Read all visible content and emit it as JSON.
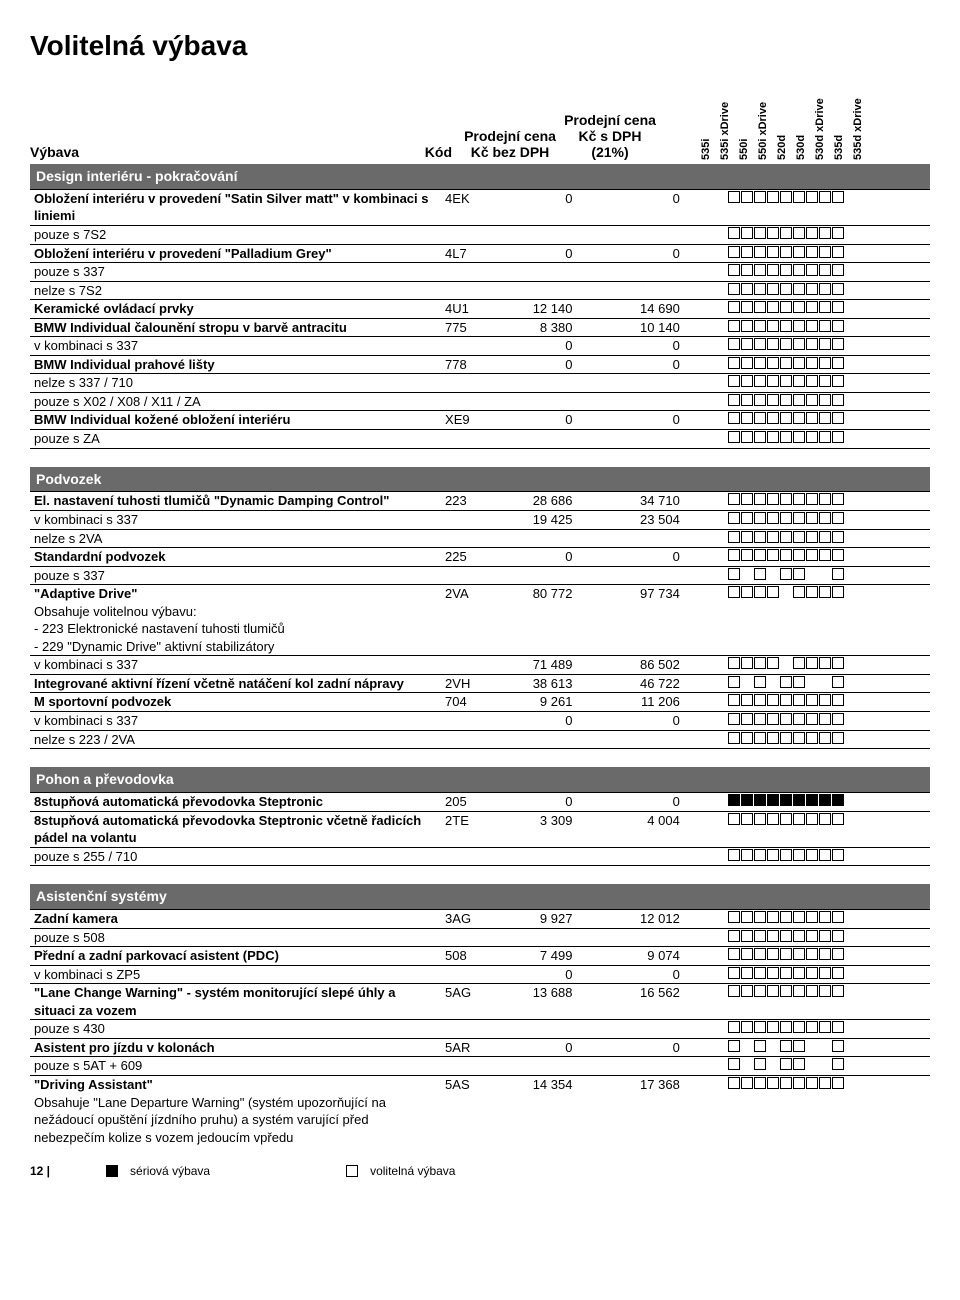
{
  "title": "Volitelná výbava",
  "header": {
    "vybava": "Výbava",
    "kod": "Kód",
    "price1": "Prodejní cena Kč bez DPH",
    "price2": "Prodejní cena Kč s DPH (21%)"
  },
  "models": [
    "535i",
    "535i xDrive",
    "550i",
    "550i xDrive",
    "520d",
    "530d",
    "530d xDrive",
    "535d",
    "535d xDrive"
  ],
  "sections": [
    {
      "title": "Design interiéru - pokračování",
      "rows": [
        {
          "desc": "Obložení interiéru v provedení \"Satin Silver matt\" v kombinaci s liniemi",
          "bold": true,
          "kod": "4EK",
          "p1": "0",
          "p2": "0",
          "boxes": "OOOOOOOOO"
        },
        {
          "desc": "pouze s 7S2",
          "boxes": "OOOOOOOOO"
        },
        {
          "desc": "Obložení interiéru v provedení \"Palladium Grey\"",
          "bold": true,
          "kod": "4L7",
          "p1": "0",
          "p2": "0",
          "boxes": "OOOOOOOOO"
        },
        {
          "desc": "pouze s 337",
          "boxes": "OOOOOOOOO"
        },
        {
          "desc": "nelze s 7S2",
          "boxes": "OOOOOOOOO"
        },
        {
          "desc": "Keramické ovládací prvky",
          "bold": true,
          "kod": "4U1",
          "p1": "12 140",
          "p2": "14 690",
          "boxes": "OOOOOOOOO"
        },
        {
          "desc": "BMW Individual čalounění stropu v barvě antracitu",
          "bold": true,
          "kod": "775",
          "p1": "8 380",
          "p2": "10 140",
          "boxes": "OOOOOOOOO"
        },
        {
          "desc": "v kombinaci s 337",
          "p1": "0",
          "p2": "0",
          "boxes": "OOOOOOOOO"
        },
        {
          "desc": "BMW Individual prahové lišty",
          "bold": true,
          "kod": "778",
          "p1": "0",
          "p2": "0",
          "boxes": "OOOOOOOOO"
        },
        {
          "desc": "nelze s 337 / 710",
          "boxes": "OOOOOOOOO"
        },
        {
          "desc": "pouze s X02 / X08 / X11 / ZA",
          "boxes": "OOOOOOOOO"
        },
        {
          "desc": "BMW Individual kožené obložení interiéru",
          "bold": true,
          "kod": "XE9",
          "p1": "0",
          "p2": "0",
          "boxes": "OOOOOOOOO"
        },
        {
          "desc": "pouze s ZA",
          "boxes": "OOOOOOOOO"
        }
      ]
    },
    {
      "title": "Podvozek",
      "rows": [
        {
          "desc": "El. nastavení tuhosti tlumičů \"Dynamic Damping Control\"",
          "bold": true,
          "kod": "223",
          "p1": "28 686",
          "p2": "34 710",
          "boxes": "OOOOOOOOO"
        },
        {
          "desc": "v kombinaci s 337",
          "p1": "19 425",
          "p2": "23 504",
          "boxes": "OOOOOOOOO"
        },
        {
          "desc": "nelze s 2VA",
          "boxes": "OOOOOOOOO"
        },
        {
          "desc": "Standardní podvozek",
          "bold": true,
          "kod": "225",
          "p1": "0",
          "p2": "0",
          "boxes": "OOOOOOOOO"
        },
        {
          "desc": "pouze s 337",
          "boxes": "O.O.OO..O"
        },
        {
          "desc": "\"Adaptive Drive\"\nObsahuje volitelnou výbavu:\n- 223 Elektronické nastavení tuhosti tlumičů\n- 229 \"Dynamic Drive\" aktivní stabilizátory",
          "mixedBold": true,
          "kod": "2VA",
          "p1": "80 772",
          "p2": "97 734",
          "boxes": "OOOO.OOOO"
        },
        {
          "desc": "v kombinaci s 337",
          "p1": "71 489",
          "p2": "86 502",
          "boxes": "OOOO.OOOO"
        },
        {
          "desc": "Integrované aktivní řízení včetně natáčení kol zadní nápravy",
          "bold": true,
          "kod": "2VH",
          "p1": "38 613",
          "p2": "46 722",
          "boxes": "O.O.OO..O"
        },
        {
          "desc": "M sportovní podvozek",
          "bold": true,
          "kod": "704",
          "p1": "9 261",
          "p2": "11 206",
          "boxes": "OOOOOOOOO"
        },
        {
          "desc": "v kombinaci s 337",
          "p1": "0",
          "p2": "0",
          "boxes": "OOOOOOOOO"
        },
        {
          "desc": "nelze s 223 / 2VA",
          "boxes": "OOOOOOOOO"
        }
      ]
    },
    {
      "title": "Pohon a převodovka",
      "rows": [
        {
          "desc": "8stupňová automatická převodovka Steptronic",
          "bold": true,
          "kod": "205",
          "p1": "0",
          "p2": "0",
          "boxes": "FFFFFFFFF"
        },
        {
          "desc": "8stupňová automatická převodovka Steptronic včetně řadicích pádel na volantu",
          "bold": true,
          "kod": "2TE",
          "p1": "3 309",
          "p2": "4 004",
          "boxes": "OOOOOOOOO"
        },
        {
          "desc": "pouze s 255 / 710",
          "boxes": "OOOOOOOOO"
        }
      ]
    },
    {
      "title": "Asistenční systémy",
      "rows": [
        {
          "desc": "Zadní kamera",
          "bold": true,
          "kod": "3AG",
          "p1": "9 927",
          "p2": "12 012",
          "boxes": "OOOOOOOOO"
        },
        {
          "desc": "pouze s 508",
          "boxes": "OOOOOOOOO"
        },
        {
          "desc": "Přední a zadní parkovací asistent (PDC)",
          "bold": true,
          "kod": "508",
          "p1": "7 499",
          "p2": "9 074",
          "boxes": "OOOOOOOOO"
        },
        {
          "desc": "v kombinaci s ZP5",
          "p1": "0",
          "p2": "0",
          "boxes": "OOOOOOOOO"
        },
        {
          "desc": "\"Lane Change Warning\" -  systém monitorující slepé úhly a situaci za vozem",
          "bold": true,
          "kod": "5AG",
          "p1": "13 688",
          "p2": "16 562",
          "boxes": "OOOOOOOOO"
        },
        {
          "desc": "pouze s 430",
          "boxes": "OOOOOOOOO"
        },
        {
          "desc": "Asistent pro jízdu v kolonách",
          "bold": true,
          "kod": "5AR",
          "p1": "0",
          "p2": "0",
          "boxes": "O.O.OO..O"
        },
        {
          "desc": "pouze s 5AT + 609",
          "boxes": "O.O.OO..O"
        },
        {
          "desc": "\"Driving Assistant\"\nObsahuje \"Lane Departure Warning\" (systém upozorňující na nežádoucí opuštění jízdního pruhu) a systém varující před nebezpečím kolize s vozem jedoucím vpředu",
          "mixedBold": true,
          "kod": "5AS",
          "p1": "14 354",
          "p2": "17 368",
          "boxes": "OOOOOOOOO",
          "noborder": true
        }
      ]
    }
  ],
  "legend": {
    "page": "12 |",
    "standard": "sériová výbava",
    "optional": "volitelná výbava"
  },
  "colors": {
    "section_bg": "#6a6a6a",
    "section_fg": "#ffffff",
    "border": "#000000",
    "box_border": "#000000",
    "box_filled": "#000000",
    "text": "#000000"
  }
}
